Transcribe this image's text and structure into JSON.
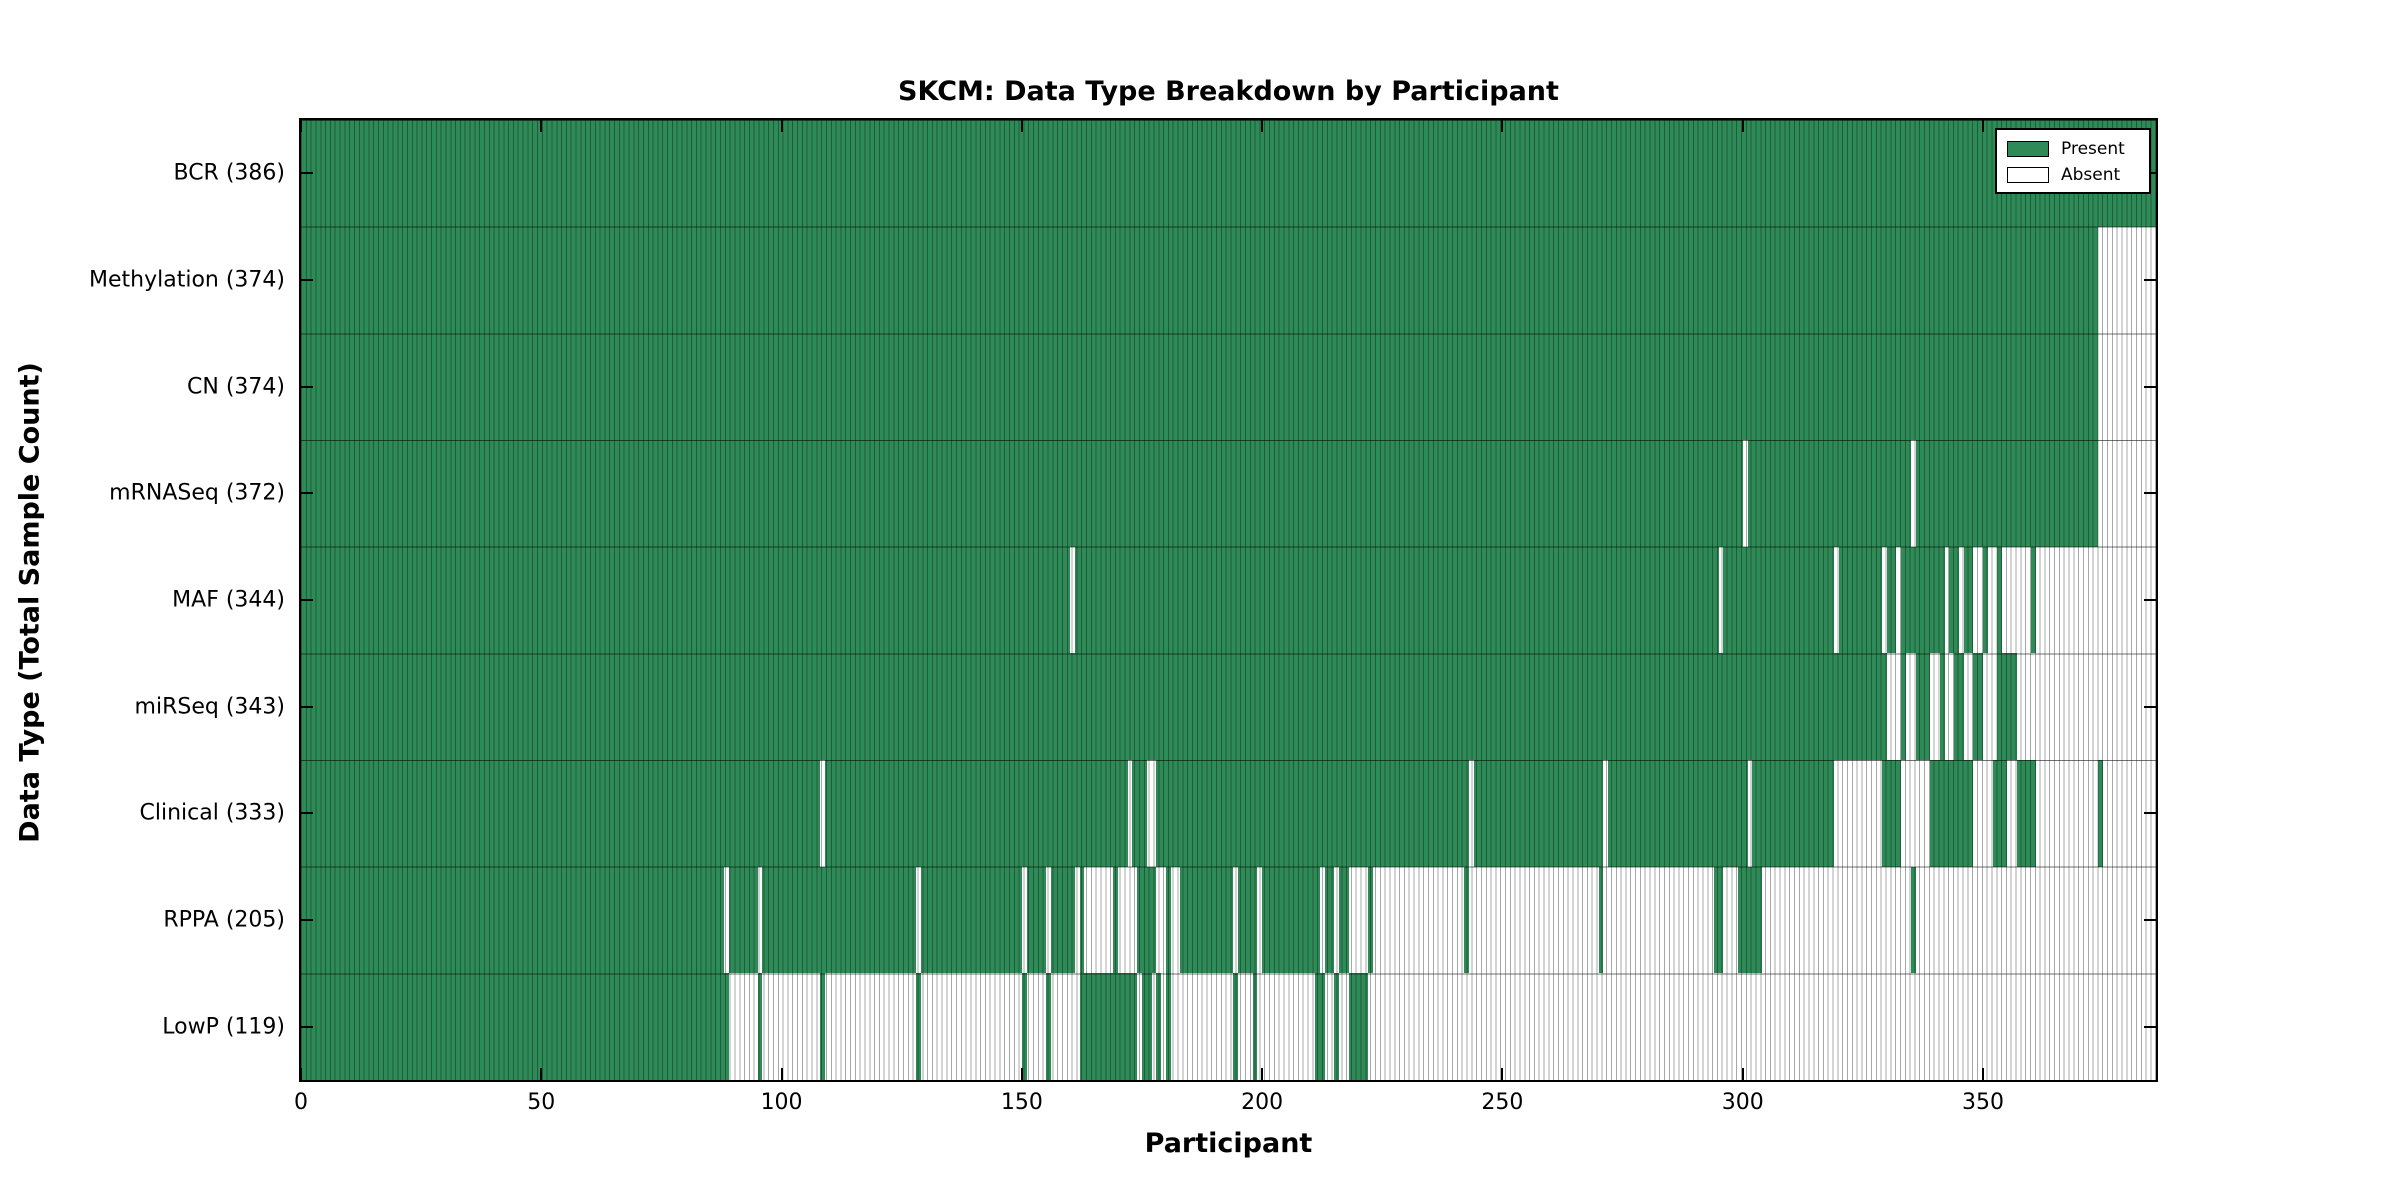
{
  "chart_data": {
    "type": "heatmap",
    "title": "SKCM: Data Type Breakdown by Participant",
    "xlabel": "Participant",
    "ylabel": "Data Type (Total Sample Count)",
    "x_max": 386,
    "x_ticks": [
      0,
      50,
      100,
      150,
      200,
      250,
      300,
      350
    ],
    "grid": false,
    "legend_position": "upper right",
    "colors": {
      "present": "#2e8b57",
      "absent": "#ffffff",
      "edge": "#000000"
    },
    "legend": [
      {
        "label": "Present",
        "color": "#2e8b57"
      },
      {
        "label": "Absent",
        "color": "#ffffff"
      }
    ],
    "rows": [
      {
        "label": "BCR",
        "count": 386,
        "display": "BCR (386)",
        "absent": []
      },
      {
        "label": "Methylation",
        "count": 374,
        "display": "Methylation (374)",
        "absent": [
          [
            374,
            386
          ]
        ]
      },
      {
        "label": "CN",
        "count": 374,
        "display": "CN (374)",
        "absent": [
          [
            374,
            386
          ]
        ]
      },
      {
        "label": "mRNASeq",
        "count": 372,
        "display": "mRNASeq (372)",
        "absent": [
          [
            300,
            301
          ],
          [
            335,
            336
          ],
          [
            374,
            386
          ]
        ]
      },
      {
        "label": "MAF",
        "count": 344,
        "display": "MAF (344)",
        "absent": [
          [
            160,
            161
          ],
          [
            295,
            296
          ],
          [
            319,
            320
          ],
          [
            329,
            330
          ],
          [
            332,
            333
          ],
          [
            342,
            343
          ],
          [
            345,
            346
          ],
          [
            348,
            350
          ],
          [
            351,
            353
          ],
          [
            354,
            360
          ],
          [
            361,
            386
          ]
        ]
      },
      {
        "label": "miRSeq",
        "count": 343,
        "display": "miRSeq (343)",
        "absent": [
          [
            330,
            333
          ],
          [
            334,
            336
          ],
          [
            339,
            341
          ],
          [
            342,
            344
          ],
          [
            346,
            348
          ],
          [
            350,
            353
          ],
          [
            357,
            386
          ]
        ]
      },
      {
        "label": "Clinical",
        "count": 333,
        "display": "Clinical (333)",
        "absent": [
          [
            108,
            109
          ],
          [
            172,
            173
          ],
          [
            176,
            178
          ],
          [
            243,
            244
          ],
          [
            271,
            272
          ],
          [
            301,
            302
          ],
          [
            319,
            329
          ],
          [
            333,
            339
          ],
          [
            348,
            352
          ],
          [
            355,
            357
          ],
          [
            361,
            374
          ],
          [
            375,
            386
          ]
        ]
      },
      {
        "label": "RPPA",
        "count": 205,
        "display": "RPPA (205)",
        "absent": [
          [
            88,
            89
          ],
          [
            95,
            96
          ],
          [
            128,
            129
          ],
          [
            150,
            151
          ],
          [
            155,
            156
          ],
          [
            161,
            162
          ],
          [
            163,
            169
          ],
          [
            170,
            174
          ],
          [
            178,
            180
          ],
          [
            181,
            183
          ],
          [
            194,
            195
          ],
          [
            199,
            200
          ],
          [
            212,
            213
          ],
          [
            215,
            216
          ],
          [
            218,
            222
          ],
          [
            223,
            242
          ],
          [
            243,
            270
          ],
          [
            271,
            294
          ],
          [
            296,
            299
          ],
          [
            304,
            335
          ],
          [
            336,
            386
          ]
        ]
      },
      {
        "label": "LowP",
        "count": 119,
        "display": "LowP (119)",
        "absent": [
          [
            89,
            95
          ],
          [
            96,
            108
          ],
          [
            109,
            128
          ],
          [
            129,
            150
          ],
          [
            151,
            155
          ],
          [
            156,
            162
          ],
          [
            174,
            175
          ],
          [
            177,
            178
          ],
          [
            179,
            180
          ],
          [
            181,
            194
          ],
          [
            195,
            198
          ],
          [
            199,
            211
          ],
          [
            213,
            215
          ],
          [
            216,
            218
          ],
          [
            222,
            386
          ]
        ]
      }
    ]
  }
}
